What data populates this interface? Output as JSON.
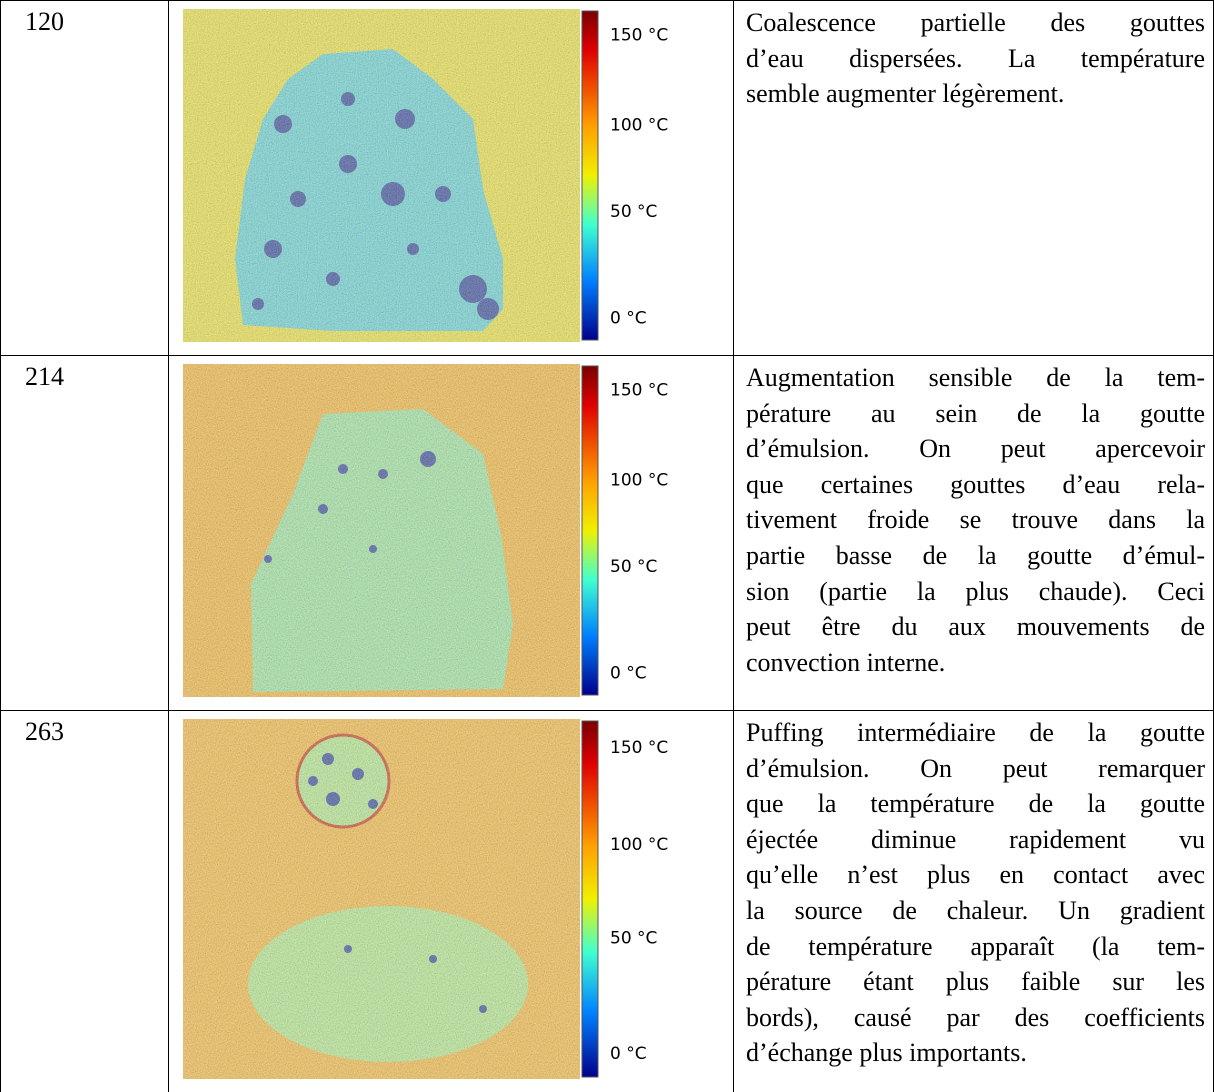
{
  "table": {
    "rows": [
      {
        "time": "120",
        "scale": [
          "150 °C",
          "100 °C",
          "50 °C",
          "0 °C"
        ],
        "description": [
          "Coalescence partielle des gouttes",
          "d’eau dispersées. La température",
          "semble augmenter légèrement."
        ]
      },
      {
        "time": "214",
        "scale": [
          "150 °C",
          "100 °C",
          "50 °C",
          "0 °C"
        ],
        "description": [
          "Augmentation sensible de la tem-",
          "pérature au sein de la goutte",
          "d’émulsion. On peut apercevoir",
          "que certaines gouttes d’eau rela-",
          "tivement froide se trouve dans la",
          "partie basse de la goutte d’émul-",
          "sion (partie la plus chaude). Ceci",
          "peut être du aux mouvements de",
          "convection interne."
        ]
      },
      {
        "time": "263",
        "scale": [
          "150 °C",
          "100 °C",
          "50 °C",
          "0 °C"
        ],
        "description": [
          "Puffing intermédiaire de la goutte",
          "d’émulsion. On peut remarquer",
          "que la température de la goutte",
          "éjectée diminue rapidement vu",
          "qu’elle n’est plus en contact avec",
          "la source de chaleur. Un gradient",
          "de température apparaît (la tem-",
          "pérature étant plus faible sur les",
          "bords), causé par des coefficients",
          "d’échange plus importants."
        ]
      }
    ]
  }
}
